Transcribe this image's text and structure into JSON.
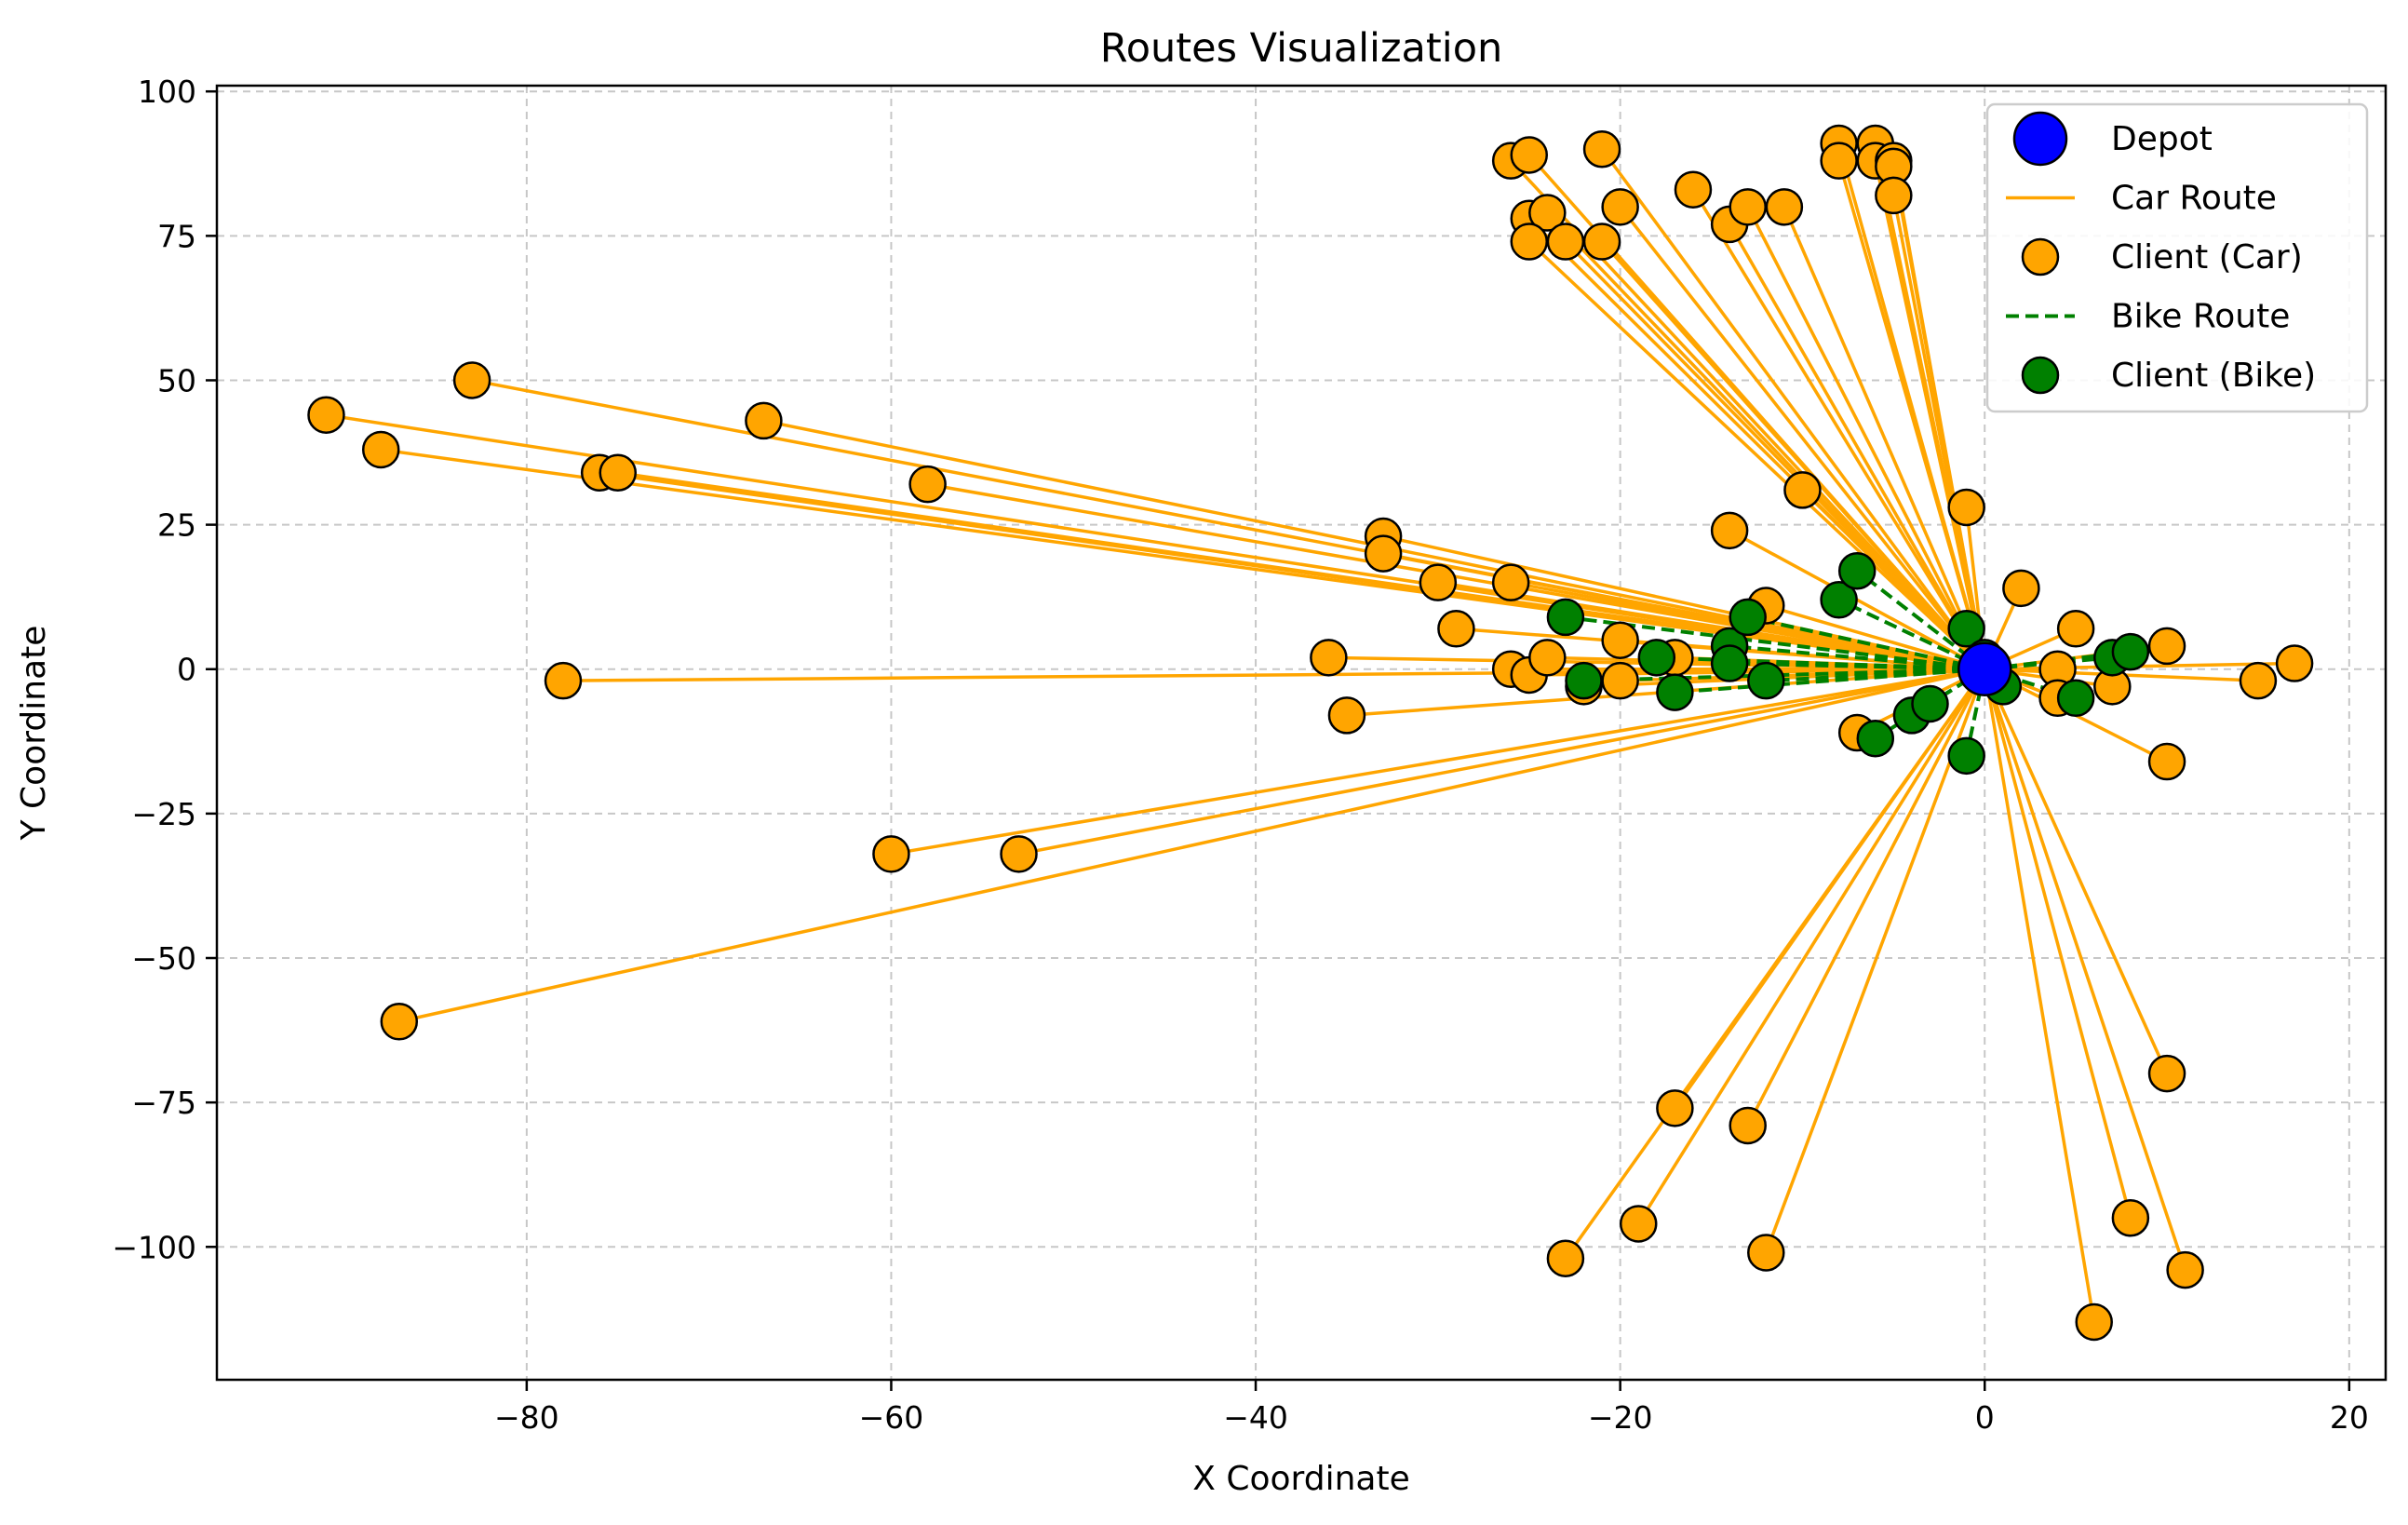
{
  "chart_data": {
    "type": "scatter",
    "title": "Routes Visualization",
    "xlabel": "X Coordinate",
    "ylabel": "Y Coordinate",
    "xlim": [
      -97,
      22
    ],
    "ylim": [
      -123,
      101
    ],
    "xticks": [
      -80,
      -60,
      -40,
      -20,
      0,
      20
    ],
    "yticks": [
      -100,
      -75,
      -50,
      -25,
      0,
      25,
      50,
      75,
      100
    ],
    "xtick_labels": [
      "−80",
      "−60",
      "−40",
      "−20",
      "0",
      "20"
    ],
    "ytick_labels": [
      "−100",
      "−75",
      "−50",
      "−25",
      "0",
      "25",
      "50",
      "75",
      "100"
    ],
    "grid": true,
    "legend_position": "top-right",
    "colors": {
      "depot": "#0000ff",
      "car": "#ffa500",
      "bike": "#008000",
      "marker_edge": "#000000"
    },
    "depot": {
      "x": 0,
      "y": 0
    },
    "series": [
      {
        "name": "Car Route",
        "style": "solid",
        "clients_label": "Client (Car)",
        "points": [
          [
            -91,
            44
          ],
          [
            -88,
            38
          ],
          [
            -83,
            50
          ],
          [
            -76,
            34
          ],
          [
            -75,
            34
          ],
          [
            -67,
            43
          ],
          [
            -58,
            32
          ],
          [
            -78,
            -2
          ],
          [
            -87,
            -61
          ],
          [
            -60,
            -32
          ],
          [
            -53,
            -32
          ],
          [
            -36,
            2
          ],
          [
            -35,
            -8
          ],
          [
            -33,
            23
          ],
          [
            -33,
            20
          ],
          [
            -30,
            15
          ],
          [
            -29,
            7
          ],
          [
            -26,
            15
          ],
          [
            -26,
            0
          ],
          [
            -25,
            -1
          ],
          [
            -24,
            2
          ],
          [
            -22,
            -3
          ],
          [
            -20,
            5
          ],
          [
            -20,
            -2
          ],
          [
            -17,
            2
          ],
          [
            -14,
            24
          ],
          [
            -12,
            11
          ],
          [
            -10,
            31
          ],
          [
            -1,
            28
          ],
          [
            2,
            14
          ],
          [
            -7,
            -11
          ],
          [
            5,
            7
          ],
          [
            4,
            0
          ],
          [
            4,
            -5
          ],
          [
            7,
            -3
          ],
          [
            10,
            4
          ],
          [
            10,
            -16
          ],
          [
            15,
            -2
          ],
          [
            17,
            1
          ],
          [
            -26,
            88
          ],
          [
            -25,
            89
          ],
          [
            -25,
            78
          ],
          [
            -24,
            79
          ],
          [
            -25,
            74
          ],
          [
            -23,
            74
          ],
          [
            -21,
            90
          ],
          [
            -21,
            74
          ],
          [
            -20,
            80
          ],
          [
            -16,
            83
          ],
          [
            -14,
            77
          ],
          [
            -13,
            80
          ],
          [
            -11,
            80
          ],
          [
            -8,
            91
          ],
          [
            -8,
            88
          ],
          [
            -6,
            91
          ],
          [
            -6,
            88
          ],
          [
            -5,
            88
          ],
          [
            -5,
            87
          ],
          [
            -5,
            82
          ],
          [
            -17,
            -76
          ],
          [
            -13,
            -79
          ],
          [
            -19,
            -96
          ],
          [
            -23,
            -102
          ],
          [
            -12,
            -101
          ],
          [
            6,
            -113
          ],
          [
            8,
            -95
          ],
          [
            10,
            -70
          ],
          [
            11,
            -104
          ]
        ]
      },
      {
        "name": "Bike Route",
        "style": "dashed",
        "clients_label": "Client (Bike)",
        "points": [
          [
            -23,
            9
          ],
          [
            -22,
            -2
          ],
          [
            -18,
            2
          ],
          [
            -17,
            -4
          ],
          [
            -14,
            4
          ],
          [
            -14,
            1
          ],
          [
            -13,
            9
          ],
          [
            -12,
            -2
          ],
          [
            -8,
            12
          ],
          [
            -7,
            17
          ],
          [
            -6,
            -12
          ],
          [
            -4,
            -8
          ],
          [
            -3,
            -6
          ],
          [
            -1,
            7
          ],
          [
            -1,
            -15
          ],
          [
            0,
            2
          ],
          [
            1,
            -3
          ],
          [
            5,
            -5
          ],
          [
            7,
            2
          ],
          [
            8,
            3
          ]
        ]
      }
    ],
    "legend": [
      "Depot",
      "Car Route",
      "Client (Car)",
      "Bike Route",
      "Client (Bike)"
    ]
  }
}
